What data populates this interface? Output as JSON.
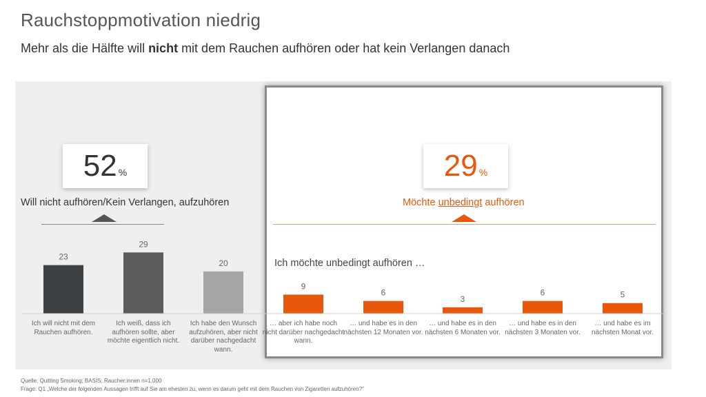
{
  "header": {
    "title": "Rauchstoppmotivation niedrig",
    "subtitle_pre": "Mehr als die Hälfte will ",
    "subtitle_bold": "nicht",
    "subtitle_post": " mit dem Rauchen aufhören oder hat kein Verlangen danach"
  },
  "left_kpi": {
    "value": "52",
    "unit": "%",
    "label": "Will nicht aufhören/Kein Verlangen, aufzuhören"
  },
  "right_kpi": {
    "value": "29",
    "unit": "%",
    "label_pre": "Möchte ",
    "label_underline": "unbedingt",
    "label_post": " aufhören"
  },
  "right_section_label": "Ich möchte unbedingt aufhören …",
  "footer": {
    "source": "Quelle: Quitting Smoking; BASIS: Raucher:innen n=1.000",
    "question": "Frage: Q1 „Welche der folgenden Aussagen trifft auf Sie am ehesten zu, wenn es darum geht mit dem Rauchen von Zigaretten aufzuhören?\""
  },
  "colors": {
    "orange": "#e8580c",
    "dark": "#3d4144",
    "mid": "#5c5c5c",
    "light": "#a6a6a6"
  },
  "chart_data": [
    {
      "type": "bar",
      "categories": [
        "Ich will nicht mit dem Rauchen aufhören.",
        "Ich weiß, dass ich aufhören sollte, aber möchte eigentlich nicht.",
        "Ich habe den Wunsch aufzuhören, aber nicht darüber nachgedacht wann."
      ],
      "values": [
        23,
        29,
        20
      ],
      "bar_colors": [
        "#3d4144",
        "#5c5c5c",
        "#a6a6a6"
      ]
    },
    {
      "type": "bar",
      "categories": [
        "… aber ich habe noch nicht darüber nachgedacht wann.",
        "… und habe es in den nächsten 12 Monaten vor.",
        "… und habe es in den nächsten 6 Monaten vor.",
        "… und habe es in den nächsten 3 Monaten vor.",
        "… und habe es im nächsten Monat vor."
      ],
      "values": [
        9,
        6,
        3,
        6,
        5
      ],
      "bar_colors": [
        "#e8580c",
        "#e8580c",
        "#e8580c",
        "#e8580c",
        "#e8580c"
      ]
    }
  ]
}
